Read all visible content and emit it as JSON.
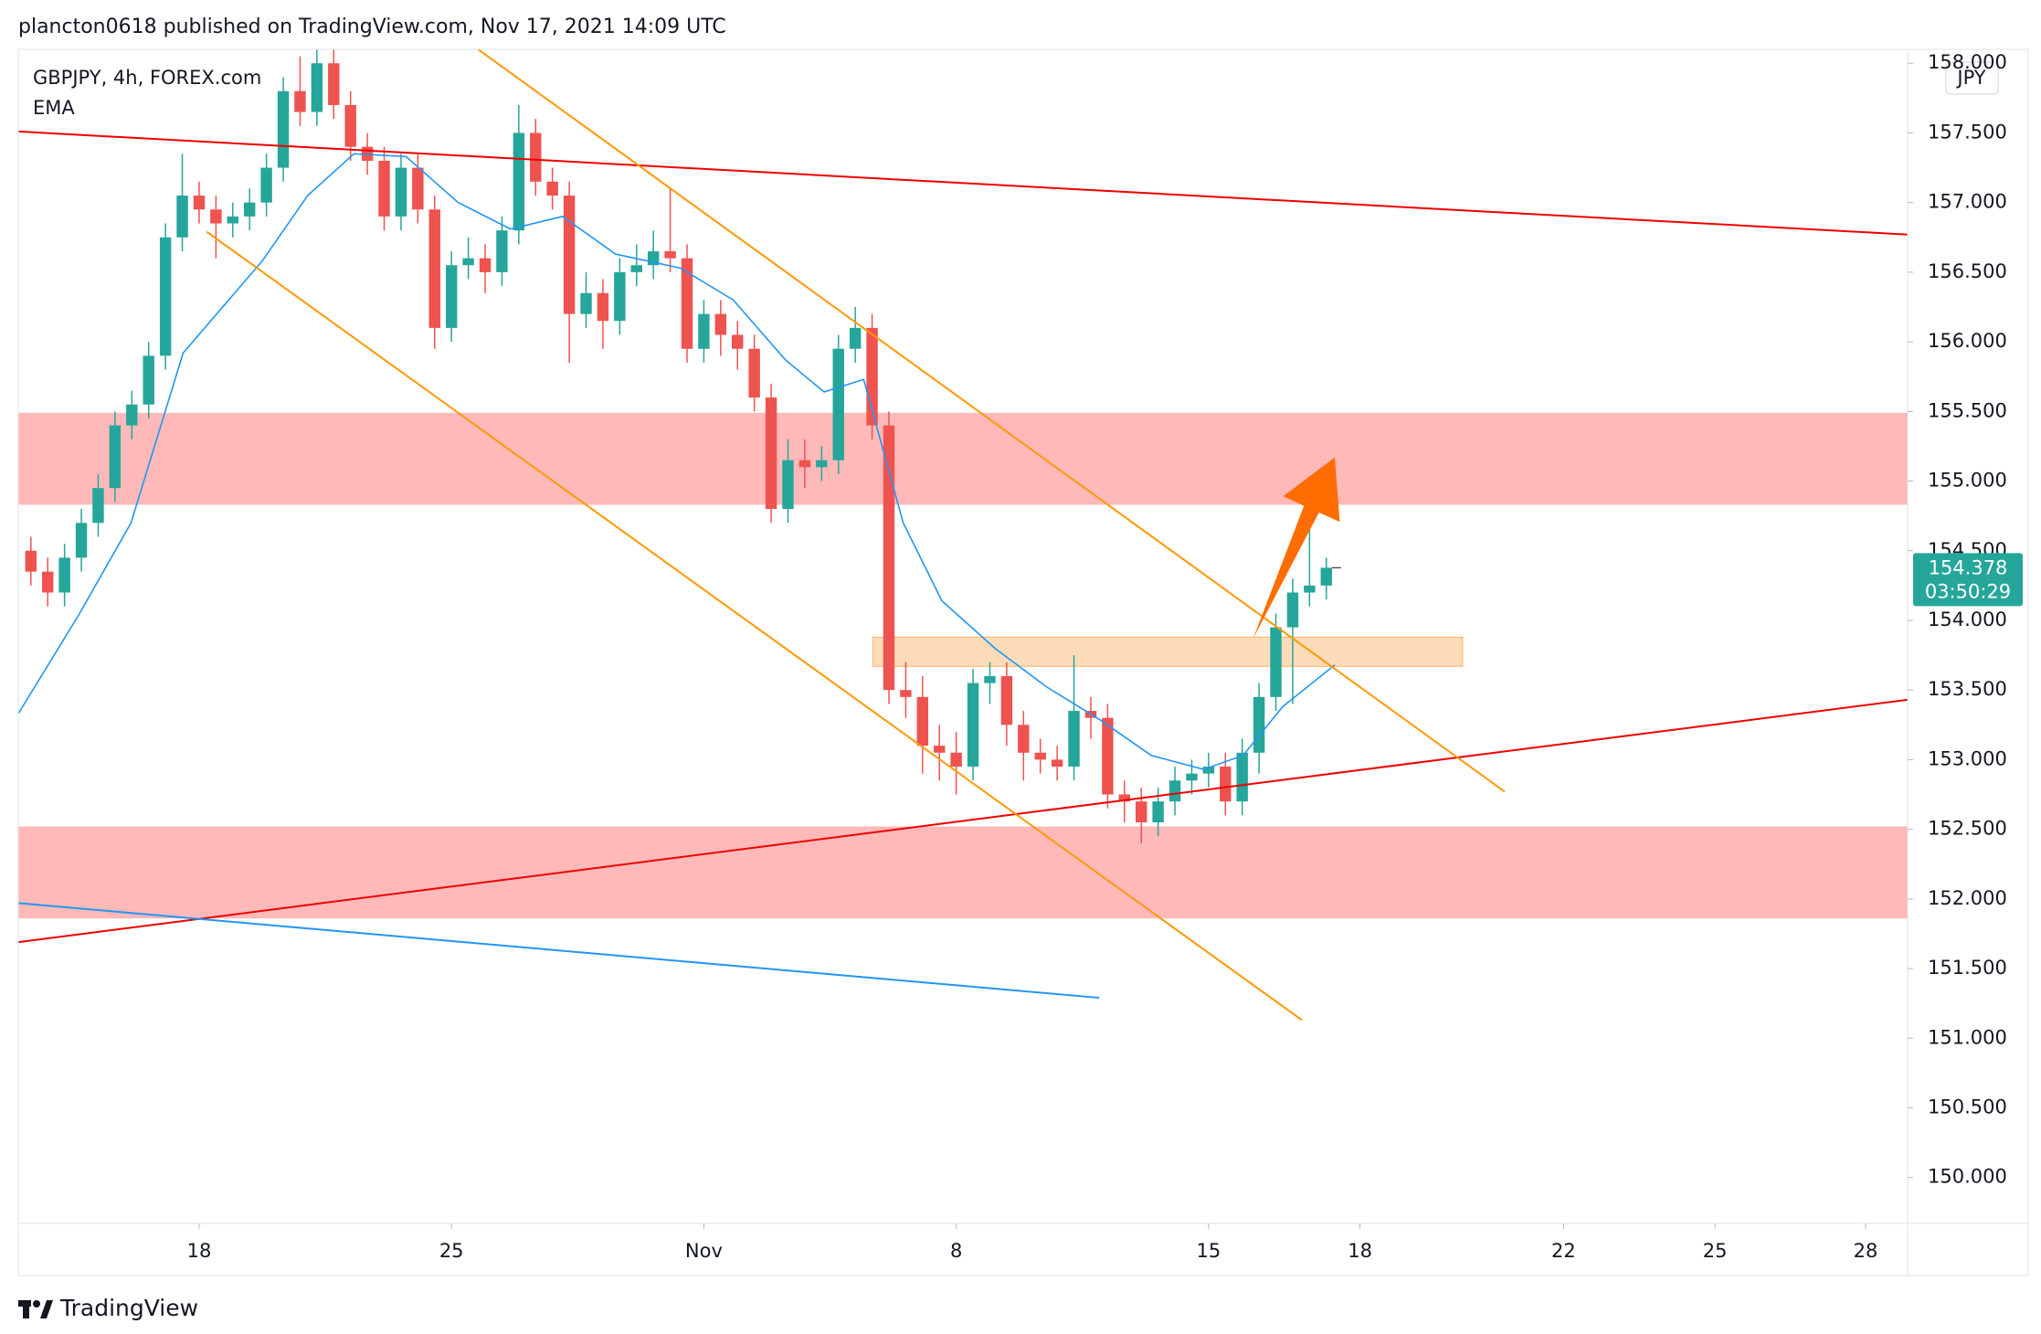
{
  "header": "plancton0618 published on TradingView.com, Nov 17, 2021 14:09 UTC",
  "brand": "TradingView",
  "chart_data": {
    "type": "candlestick",
    "symbol": "GBPJPY, 4h, FOREX.com",
    "currency": "JPY",
    "up_color": "#26a69a",
    "down_color": "#ef5350",
    "x": [
      -20,
      -18,
      -16,
      -14,
      -12,
      -10,
      -8,
      -6,
      -4,
      -2,
      0,
      2,
      4,
      6,
      8,
      10,
      12,
      14,
      16,
      18,
      20,
      22,
      24,
      26,
      28,
      30,
      32,
      34,
      36,
      38,
      40,
      42,
      44,
      46,
      48,
      50,
      52,
      54,
      56,
      58,
      60,
      62,
      64,
      66,
      68,
      70,
      72,
      74,
      76,
      78,
      80,
      82,
      84,
      86,
      88,
      90,
      92,
      94,
      96,
      98,
      100,
      102,
      104,
      106,
      108,
      110,
      112,
      114,
      116,
      118,
      120,
      122,
      124,
      126,
      128,
      130,
      132,
      134
    ],
    "open": [
      154.5,
      154.35,
      154.2,
      154.45,
      154.7,
      154.95,
      155.4,
      155.55,
      155.9,
      156.75,
      157.05,
      156.95,
      156.85,
      156.9,
      157.0,
      157.25,
      157.8,
      157.65,
      158.0,
      157.7,
      157.4,
      157.3,
      156.9,
      157.25,
      156.95,
      156.1,
      156.55,
      156.6,
      156.5,
      156.8,
      157.5,
      157.15,
      157.05,
      156.2,
      156.35,
      156.15,
      156.5,
      156.55,
      156.65,
      156.6,
      155.95,
      156.2,
      156.05,
      155.95,
      155.6,
      154.8,
      155.15,
      155.1,
      155.15,
      155.95,
      156.1,
      155.4,
      153.5,
      153.45,
      153.1,
      153.05,
      152.95,
      153.55,
      153.6,
      153.25,
      153.05,
      153.0,
      152.95,
      153.35,
      153.3,
      152.75,
      152.7,
      152.55,
      152.7,
      152.85,
      152.9,
      152.95,
      152.7,
      153.05,
      153.45,
      153.95,
      154.2,
      154.25
    ],
    "high": [
      154.6,
      154.45,
      154.55,
      154.8,
      155.05,
      155.5,
      155.65,
      156.0,
      156.85,
      157.35,
      157.15,
      157.05,
      157.0,
      157.1,
      157.35,
      157.9,
      158.05,
      158.1,
      158.1,
      157.8,
      157.5,
      157.4,
      157.35,
      157.35,
      157.05,
      156.65,
      156.75,
      156.7,
      156.9,
      157.7,
      157.6,
      157.25,
      157.15,
      156.5,
      156.45,
      156.6,
      156.7,
      156.8,
      157.1,
      156.7,
      156.3,
      156.3,
      156.15,
      156.05,
      155.7,
      155.3,
      155.3,
      155.25,
      156.05,
      156.25,
      156.2,
      155.5,
      153.7,
      153.6,
      153.25,
      153.2,
      153.65,
      153.7,
      153.7,
      153.35,
      153.15,
      153.1,
      153.75,
      153.45,
      153.4,
      152.85,
      152.8,
      152.8,
      152.95,
      153.0,
      153.05,
      153.05,
      153.15,
      153.55,
      154.05,
      154.3,
      154.75,
      154.45
    ],
    "low": [
      154.25,
      154.1,
      154.1,
      154.35,
      154.6,
      154.85,
      155.3,
      155.45,
      155.8,
      156.65,
      156.85,
      156.6,
      156.75,
      156.8,
      156.9,
      157.15,
      157.55,
      157.55,
      157.6,
      157.3,
      157.2,
      156.8,
      156.8,
      156.85,
      155.95,
      156.0,
      156.45,
      156.35,
      156.4,
      156.7,
      157.05,
      156.95,
      155.85,
      156.1,
      155.95,
      156.05,
      156.4,
      156.45,
      156.5,
      155.85,
      155.85,
      155.9,
      155.8,
      155.5,
      154.7,
      154.7,
      154.95,
      155.0,
      155.05,
      155.85,
      155.3,
      153.4,
      153.3,
      152.9,
      152.85,
      152.75,
      152.85,
      153.4,
      153.1,
      152.85,
      152.9,
      152.85,
      152.85,
      153.15,
      152.65,
      152.55,
      152.4,
      152.45,
      152.6,
      152.75,
      152.8,
      152.6,
      152.6,
      152.9,
      153.35,
      153.4,
      154.1,
      154.15
    ],
    "close": [
      154.35,
      154.2,
      154.45,
      154.7,
      154.95,
      155.4,
      155.55,
      155.9,
      156.75,
      157.05,
      156.95,
      156.85,
      156.9,
      157.0,
      157.25,
      157.8,
      157.65,
      158.0,
      157.7,
      157.4,
      157.3,
      156.9,
      157.25,
      156.95,
      156.1,
      156.55,
      156.6,
      156.5,
      156.8,
      157.5,
      157.15,
      157.05,
      156.2,
      156.35,
      156.15,
      156.5,
      156.55,
      156.65,
      156.6,
      155.95,
      156.2,
      156.05,
      155.95,
      155.6,
      154.8,
      155.15,
      155.1,
      155.15,
      155.95,
      156.1,
      155.4,
      153.5,
      153.45,
      153.1,
      153.05,
      152.95,
      153.55,
      153.6,
      153.25,
      153.05,
      153.0,
      152.95,
      153.35,
      153.3,
      152.75,
      152.7,
      152.55,
      152.7,
      152.85,
      152.9,
      152.95,
      152.7,
      153.05,
      153.45,
      153.95,
      154.2,
      154.25,
      154.378
    ],
    "ema": {
      "name": "EMA",
      "color": "#2196f3",
      "x": [
        -21.5,
        -14.3,
        -8.1,
        -1.9,
        7.5,
        12.9,
        18.4,
        24.6,
        30.8,
        37.0,
        43.2,
        49.5,
        57.2,
        63.5,
        69.7,
        74.3,
        79.0,
        83.7,
        88.3,
        94.6,
        100.8,
        107.0,
        113.2,
        119.4,
        124.1,
        128.8,
        135.0
      ],
      "values": [
        153.33,
        154.04,
        154.7,
        155.92,
        156.58,
        157.05,
        157.35,
        157.33,
        157.0,
        156.81,
        156.9,
        156.63,
        156.53,
        156.3,
        155.87,
        155.64,
        155.73,
        154.7,
        154.14,
        153.8,
        153.52,
        153.29,
        153.03,
        152.93,
        153.03,
        153.38,
        153.68
      ]
    },
    "zones": [
      {
        "y": [
          155.49,
          154.83
        ],
        "color": "#ffb9b9"
      },
      {
        "y": [
          152.52,
          151.86
        ],
        "color": "#ffb9b9"
      },
      {
        "x": [
          80.1,
          150.2
        ],
        "y": [
          153.88,
          153.67
        ],
        "color": "#fcd8b0"
      }
    ],
    "lines": [
      {
        "x": [
          -21.5,
          203.1
        ],
        "y": [
          157.51,
          156.77
        ],
        "color": "#f00000"
      },
      {
        "x": [
          -21.5,
          203.1
        ],
        "y": [
          151.69,
          153.43
        ],
        "color": "#f00000"
      },
      {
        "x": [
          32.7,
          155.2
        ],
        "y": [
          158.12,
          152.77
        ],
        "color": "#ff9800"
      },
      {
        "x": [
          0.9,
          131.1
        ],
        "y": [
          156.79,
          151.13
        ],
        "color": "#ff9800"
      },
      {
        "x": [
          -21.5,
          107
        ],
        "y": [
          151.97,
          151.29
        ],
        "color": "#2196f3"
      }
    ],
    "arrow": {
      "x": [
        125.3,
        135
      ],
      "y": [
        153.87,
        155.17
      ],
      "color": "#ff6d00"
    },
    "last_price": 154.378,
    "countdown": "03:50:29",
    "xlim": [
      -21.5,
      203.1
    ],
    "xticks": [
      {
        "value": 0,
        "label": "18"
      },
      {
        "value": 30,
        "label": "25"
      },
      {
        "value": 60,
        "label": "Nov"
      },
      {
        "value": 90,
        "label": "8"
      },
      {
        "value": 120,
        "label": "15"
      },
      {
        "value": 138,
        "label": "18"
      },
      {
        "value": 162.2,
        "label": "22"
      },
      {
        "value": 180.2,
        "label": "25"
      },
      {
        "value": 198.1,
        "label": "28"
      }
    ],
    "ylim": [
      149.67,
      158.1
    ],
    "yticks": [
      {
        "value": 150,
        "label": "150.000"
      },
      {
        "value": 150.5,
        "label": "150.500"
      },
      {
        "value": 151,
        "label": "151.000"
      },
      {
        "value": 151.5,
        "label": "151.500"
      },
      {
        "value": 152,
        "label": "152.000"
      },
      {
        "value": 152.5,
        "label": "152.500"
      },
      {
        "value": 153,
        "label": "153.000"
      },
      {
        "value": 153.5,
        "label": "153.500"
      },
      {
        "value": 154,
        "label": "154.000"
      },
      {
        "value": 154.5,
        "label": "154.500"
      },
      {
        "value": 155,
        "label": "155.000"
      },
      {
        "value": 155.5,
        "label": "155.500"
      },
      {
        "value": 156,
        "label": "156.000"
      },
      {
        "value": 156.5,
        "label": "156.500"
      },
      {
        "value": 157,
        "label": "157.000"
      },
      {
        "value": 157.5,
        "label": "157.500"
      },
      {
        "value": 158,
        "label": "158.000"
      }
    ],
    "grid": false
  }
}
